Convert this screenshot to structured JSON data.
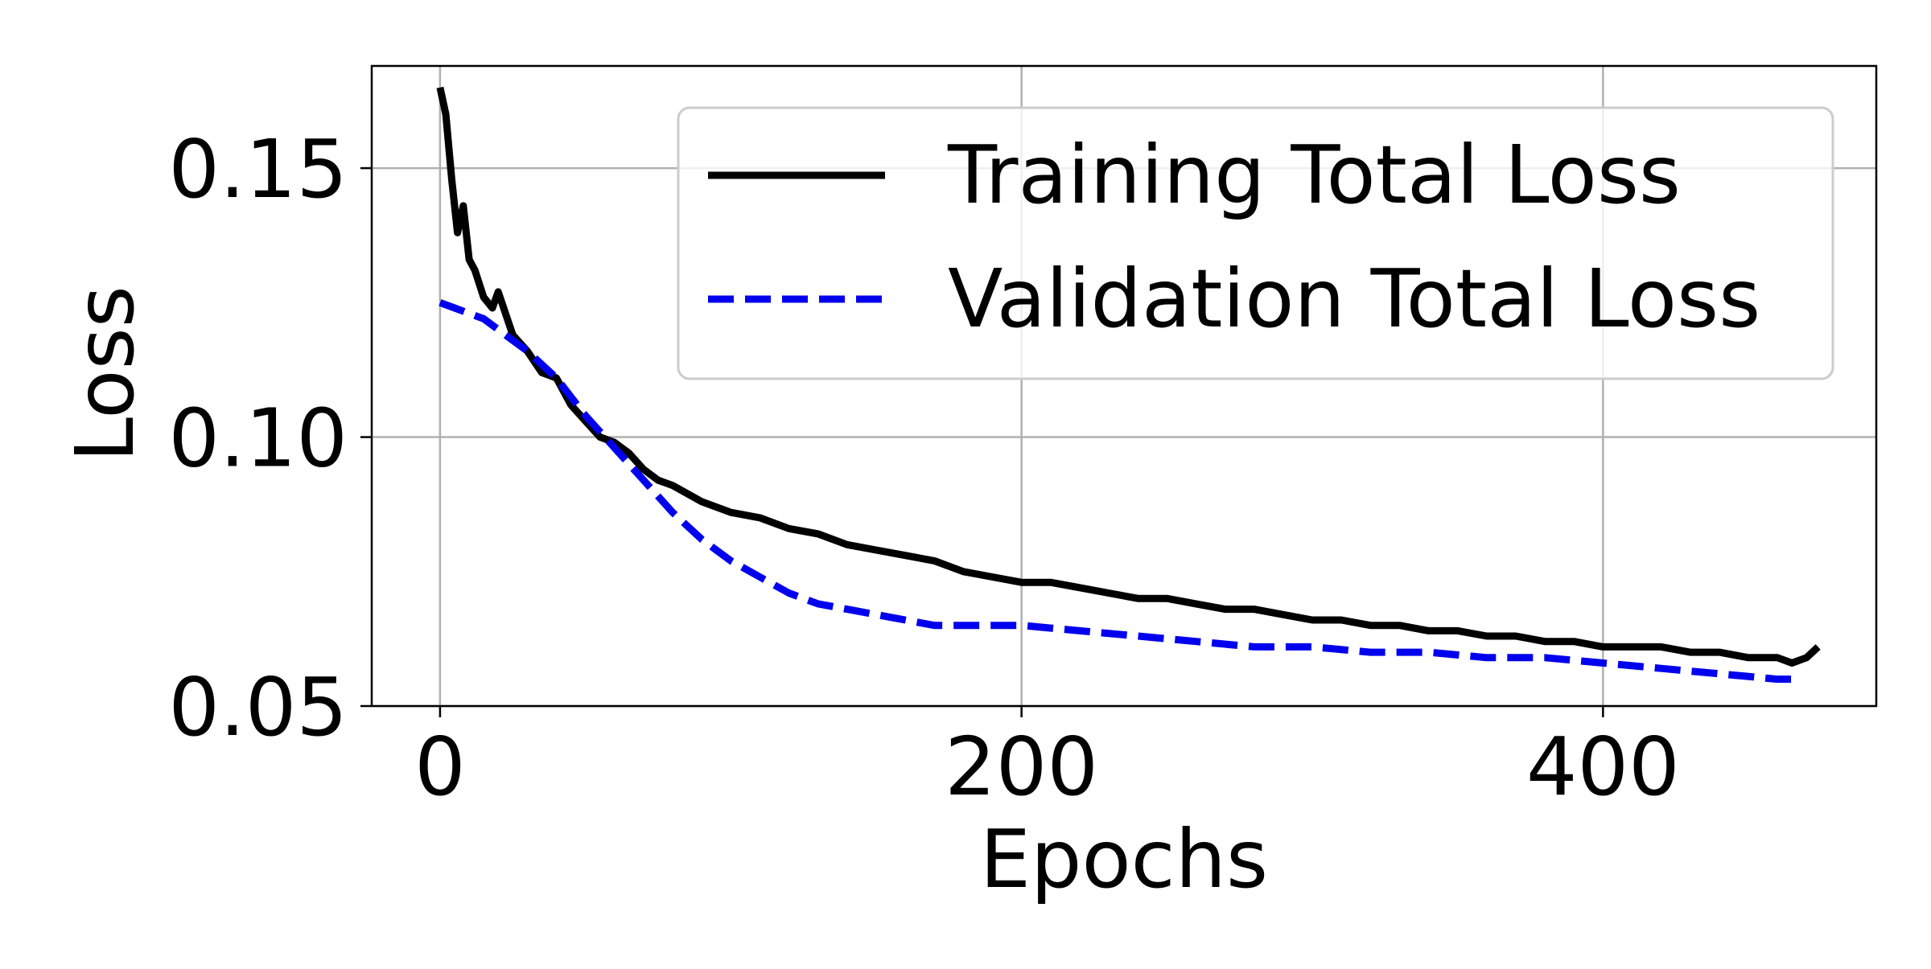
{
  "chart_data": {
    "type": "line",
    "title": "",
    "xlabel": "Epochs",
    "ylabel": "Loss",
    "xlim": [
      -23.5,
      494
    ],
    "ylim": [
      0.05,
      0.169
    ],
    "x_ticks": [
      0,
      200,
      400
    ],
    "x_tick_labels": [
      "0",
      "200",
      "400"
    ],
    "y_ticks": [
      0.05,
      0.1,
      0.15
    ],
    "y_tick_labels": [
      "0.05",
      "0.10",
      "0.15"
    ],
    "grid": true,
    "legend_position": "top-right",
    "series": [
      {
        "name": "Training Total Loss",
        "color": "#000000",
        "style": "solid",
        "x": [
          0,
          2,
          4,
          6,
          8,
          10,
          12,
          15,
          18,
          20,
          25,
          30,
          35,
          40,
          45,
          50,
          55,
          60,
          65,
          70,
          75,
          80,
          90,
          100,
          110,
          120,
          130,
          140,
          150,
          160,
          170,
          180,
          190,
          200,
          210,
          220,
          230,
          240,
          250,
          260,
          270,
          280,
          290,
          300,
          310,
          320,
          330,
          340,
          350,
          360,
          370,
          380,
          390,
          400,
          410,
          420,
          430,
          440,
          450,
          460,
          465,
          470,
          474
        ],
        "values": [
          0.165,
          0.16,
          0.148,
          0.138,
          0.143,
          0.133,
          0.131,
          0.126,
          0.124,
          0.127,
          0.119,
          0.116,
          0.112,
          0.111,
          0.106,
          0.103,
          0.1,
          0.099,
          0.097,
          0.094,
          0.092,
          0.091,
          0.088,
          0.086,
          0.085,
          0.083,
          0.082,
          0.08,
          0.079,
          0.078,
          0.077,
          0.075,
          0.074,
          0.073,
          0.073,
          0.072,
          0.071,
          0.07,
          0.07,
          0.069,
          0.068,
          0.068,
          0.067,
          0.066,
          0.066,
          0.065,
          0.065,
          0.064,
          0.064,
          0.063,
          0.063,
          0.062,
          0.062,
          0.061,
          0.061,
          0.061,
          0.06,
          0.06,
          0.059,
          0.059,
          0.058,
          0.059,
          0.061
        ]
      },
      {
        "name": "Validation Total Loss",
        "color": "#0000ee",
        "style": "dashed",
        "x": [
          0,
          5,
          10,
          15,
          20,
          30,
          40,
          50,
          60,
          70,
          80,
          90,
          100,
          110,
          120,
          130,
          140,
          150,
          160,
          170,
          180,
          190,
          200,
          220,
          240,
          260,
          280,
          300,
          320,
          340,
          360,
          380,
          400,
          420,
          440,
          460,
          466
        ],
        "values": [
          0.125,
          0.124,
          0.123,
          0.122,
          0.12,
          0.116,
          0.111,
          0.104,
          0.098,
          0.092,
          0.086,
          0.081,
          0.077,
          0.074,
          0.071,
          0.069,
          0.068,
          0.067,
          0.066,
          0.065,
          0.065,
          0.065,
          0.065,
          0.064,
          0.063,
          0.062,
          0.061,
          0.061,
          0.06,
          0.06,
          0.059,
          0.059,
          0.058,
          0.057,
          0.056,
          0.055,
          0.055
        ]
      }
    ]
  }
}
